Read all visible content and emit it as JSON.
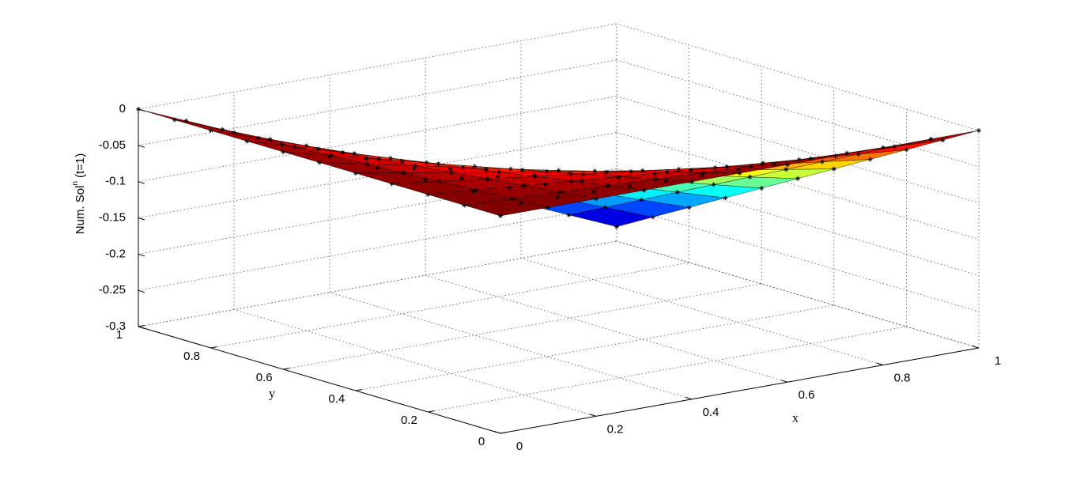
{
  "chart_data": {
    "type": "surface",
    "xlabel": "x",
    "ylabel": "y",
    "zlabel": {
      "text": "Num. Sol",
      "sup": "n",
      "suffix": "(t=1)"
    },
    "xlim": [
      0,
      1
    ],
    "ylim": [
      0,
      1
    ],
    "zlim": [
      -0.3,
      0
    ],
    "xticks": [
      0,
      0.2,
      0.4,
      0.6,
      0.8,
      1
    ],
    "yticks": [
      0,
      0.2,
      0.4,
      0.6,
      0.8,
      1
    ],
    "zticks": [
      -0.3,
      -0.25,
      -0.2,
      -0.15,
      -0.1,
      -0.05,
      0
    ],
    "grid": true,
    "colormap": "jet",
    "marker_color": "#000000",
    "edge_color": "#000000",
    "x": [
      0,
      0.1,
      0.2,
      0.3,
      0.4,
      0.5,
      0.6,
      0.7,
      0.8,
      0.9,
      1
    ],
    "y": [
      0,
      0.1,
      0.2,
      0.3,
      0.4,
      0.5,
      0.6,
      0.7,
      0.8,
      0.9,
      1
    ],
    "z": [
      [
        0,
        0,
        0,
        0,
        0,
        0,
        0,
        0,
        0,
        0,
        0
      ],
      [
        0,
        -0.0028,
        -0.0056,
        -0.0084,
        -0.0112,
        -0.014,
        -0.0168,
        -0.0196,
        -0.0224,
        -0.0252,
        -0.028
      ],
      [
        0,
        -0.0056,
        -0.0112,
        -0.0168,
        -0.0224,
        -0.028,
        -0.0336,
        -0.0392,
        -0.0448,
        -0.0504,
        -0.056
      ],
      [
        0,
        -0.0084,
        -0.0168,
        -0.0252,
        -0.0336,
        -0.042,
        -0.0504,
        -0.0588,
        -0.0672,
        -0.0756,
        -0.084
      ],
      [
        0,
        -0.0112,
        -0.0224,
        -0.0336,
        -0.0448,
        -0.056,
        -0.0672,
        -0.0784,
        -0.0896,
        -0.1008,
        -0.112
      ],
      [
        0,
        -0.014,
        -0.028,
        -0.042,
        -0.056,
        -0.07,
        -0.084,
        -0.098,
        -0.112,
        -0.126,
        -0.14
      ],
      [
        0,
        -0.0168,
        -0.0336,
        -0.0504,
        -0.0672,
        -0.084,
        -0.1008,
        -0.1176,
        -0.1344,
        -0.1512,
        -0.168
      ],
      [
        0,
        -0.0196,
        -0.0392,
        -0.0588,
        -0.0784,
        -0.098,
        -0.1176,
        -0.1372,
        -0.1568,
        -0.1764,
        -0.196
      ],
      [
        0,
        -0.0224,
        -0.0448,
        -0.0672,
        -0.0896,
        -0.112,
        -0.1344,
        -0.1568,
        -0.1792,
        -0.2016,
        -0.224
      ],
      [
        0,
        -0.0252,
        -0.0504,
        -0.0756,
        -0.1008,
        -0.126,
        -0.1512,
        -0.1764,
        -0.2016,
        -0.2268,
        -0.252
      ],
      [
        0,
        -0.028,
        -0.056,
        -0.084,
        -0.112,
        -0.14,
        -0.168,
        -0.196,
        -0.224,
        -0.252,
        -0.28
      ]
    ]
  }
}
